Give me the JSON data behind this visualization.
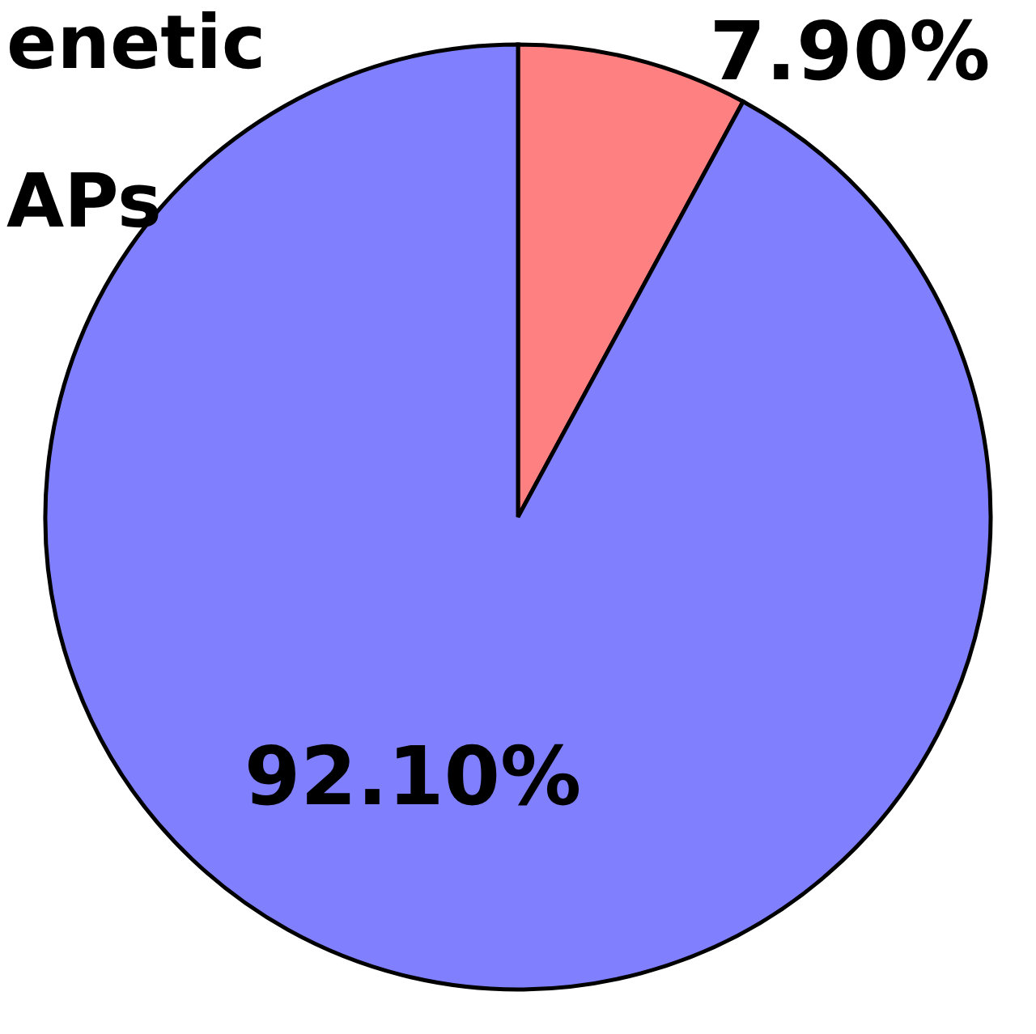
{
  "chart_data": {
    "type": "pie",
    "categories": [
      null,
      null
    ],
    "values": [
      7.9,
      92.1
    ],
    "colors": [
      "#ff8080",
      "#8080ff"
    ],
    "value_labels": [
      "7.90%",
      "92.10%"
    ],
    "annotations": [
      "enetic",
      "APs"
    ]
  }
}
